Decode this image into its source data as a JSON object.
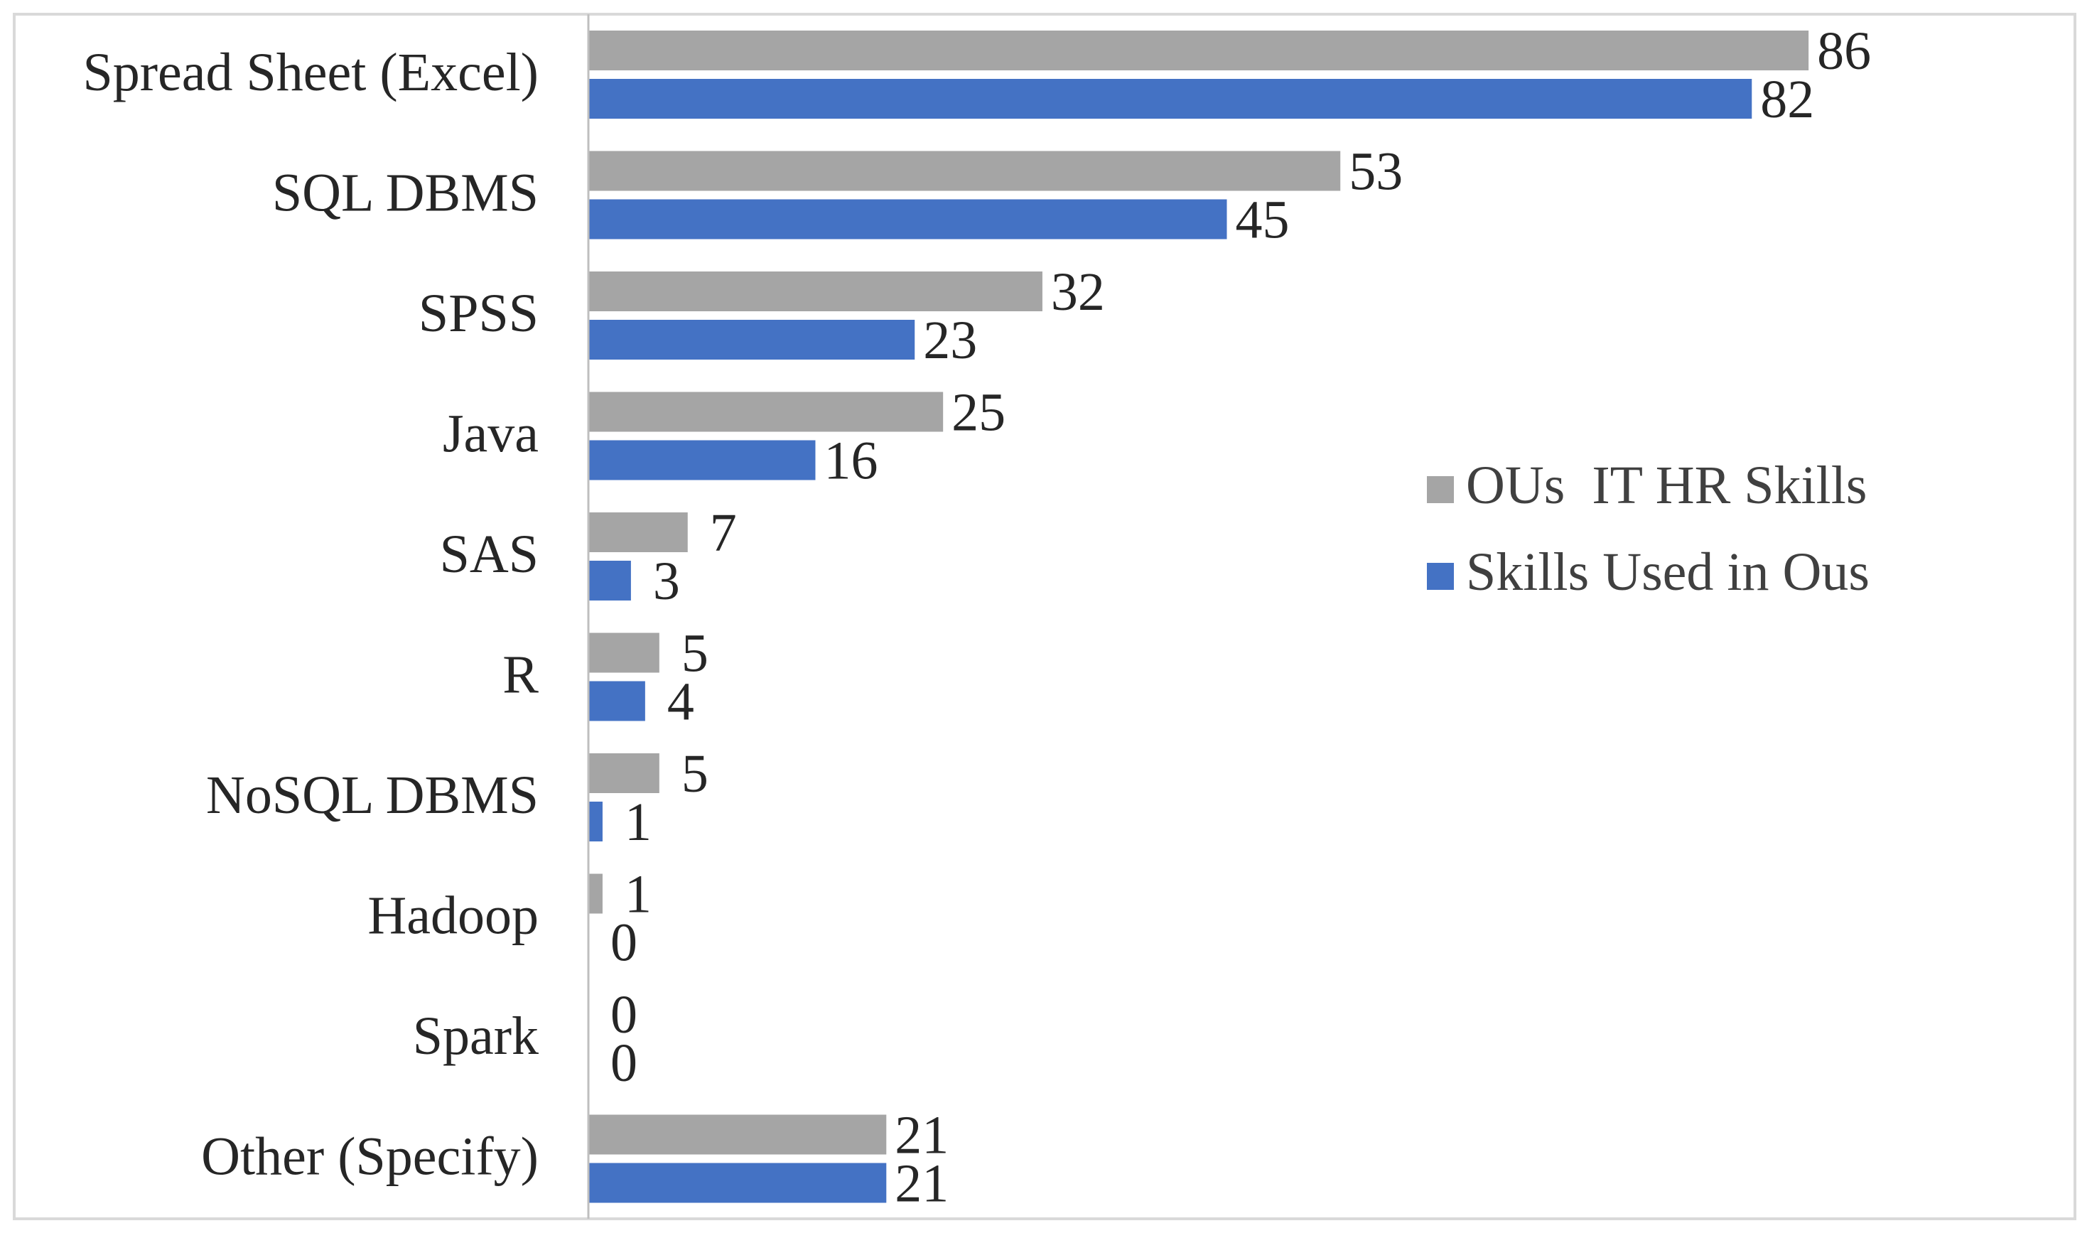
{
  "chart_data": {
    "type": "bar",
    "orientation": "horizontal",
    "title": "",
    "xlabel": "",
    "ylabel": "",
    "xlim": [
      0,
      90
    ],
    "grid": false,
    "legend_position": "right",
    "categories": [
      "Spread Sheet (Excel)",
      "SQL DBMS",
      "SPSS",
      "Java",
      "SAS",
      "R",
      "NoSQL DBMS",
      "Hadoop",
      "Spark",
      "Other (Specify)"
    ],
    "series": [
      {
        "name": "OUs  IT HR Skills",
        "color": "#a5a5a5",
        "values": [
          86,
          53,
          32,
          25,
          7,
          5,
          5,
          1,
          0,
          21
        ]
      },
      {
        "name": "Skills Used in Ous",
        "color": "#4472c4",
        "values": [
          82,
          45,
          23,
          16,
          3,
          4,
          1,
          0,
          0,
          21
        ]
      }
    ]
  }
}
